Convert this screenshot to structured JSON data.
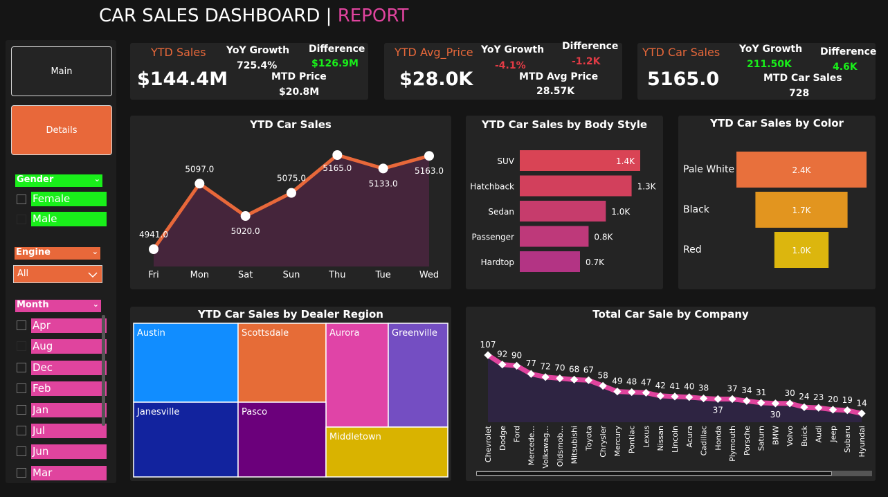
{
  "header": {
    "title": "CAR SALES DASHBOARD |",
    "subtitle": "REPORT"
  },
  "nav": {
    "main_label": "Main",
    "details_label": "Details"
  },
  "kpis": [
    {
      "title": "YTD Sales",
      "value": "$144.4M",
      "yoy_label": "YoY Growth",
      "yoy_value": "725.4%",
      "diff_label": "Difference",
      "diff_value": "$126.9M",
      "mtd_label": "MTD Price",
      "mtd_value": "$20.8M"
    },
    {
      "title": "YTD Avg_Price",
      "value": "$28.0K",
      "yoy_label": "YoY Growth",
      "yoy_value": "-4.1%",
      "diff_label": "Difference",
      "diff_value": "-1.2K",
      "mtd_label": "MTD Avg Price",
      "mtd_value": "28.57K"
    },
    {
      "title": "YTD Car Sales",
      "value": "5165.0",
      "yoy_label": "YoY Growth",
      "yoy_value": "211.50K",
      "diff_label": "Difference",
      "diff_value": "4.6K",
      "mtd_label": "MTD Car Sales",
      "mtd_value": "728"
    }
  ],
  "slicers": {
    "gender": {
      "label": "Gender",
      "options": [
        "Female",
        "Male"
      ]
    },
    "engine": {
      "label": "Engine",
      "selected": "All"
    },
    "month": {
      "label": "Month",
      "options": [
        "Apr",
        "Aug",
        "Dec",
        "Feb",
        "Jan",
        "Jul",
        "Jun",
        "Mar"
      ]
    }
  },
  "colors": {
    "accent": "#e8683a",
    "pink": "#e0449e",
    "green": "#19ef1a",
    "negative": "#e23b45",
    "background": "#151515",
    "panel": "#242424"
  },
  "chart_data": [
    {
      "type": "area",
      "title": "YTD Car Sales",
      "categories": [
        "Fri",
        "Mon",
        "Sat",
        "Sun",
        "Thu",
        "Tue",
        "Wed"
      ],
      "values": [
        4941.0,
        5097.0,
        5020.0,
        5075.0,
        5165.0,
        5133.0,
        5163.0
      ],
      "labels": [
        "4941.0",
        "5097.0",
        "5020.0",
        "5075.0",
        "5165.0",
        "5133.0",
        "5163.0"
      ],
      "ylim": [
        4941,
        5165
      ],
      "color": "#e8683a",
      "fill": "#45253b"
    },
    {
      "type": "bar",
      "title": "YTD Car Sales by Body Style",
      "orientation": "horizontal",
      "categories": [
        "SUV",
        "Hatchback",
        "Sedan",
        "Passenger",
        "Hardtop"
      ],
      "values": [
        1.4,
        1.3,
        1.0,
        0.8,
        0.7
      ],
      "labels": [
        "1.4K",
        "1.3K",
        "1.0K",
        "0.8K",
        "0.7K"
      ],
      "colors": [
        "#d94455",
        "#d2405c",
        "#c63c6c",
        "#be397a",
        "#b33484"
      ]
    },
    {
      "type": "bar",
      "title": "YTD Car Sales by Color",
      "orientation": "funnel",
      "categories": [
        "Pale White",
        "Black",
        "Red"
      ],
      "values": [
        2.4,
        1.7,
        1.0
      ],
      "labels": [
        "2.4K",
        "1.7K",
        "1.0K"
      ],
      "colors": [
        "#e8703c",
        "#e2951f",
        "#dcb60e"
      ]
    },
    {
      "type": "heatmap",
      "title": "YTD Car Sales by Dealer Region",
      "regions": [
        {
          "name": "Austin",
          "color": "#118dff"
        },
        {
          "name": "Scottsdale",
          "color": "#e66c37"
        },
        {
          "name": "Aurora",
          "color": "#e044a7"
        },
        {
          "name": "Greenville",
          "color": "#744ec2"
        },
        {
          "name": "Janesville",
          "color": "#12239e"
        },
        {
          "name": "Pasco",
          "color": "#6b007b"
        },
        {
          "name": "Middletown",
          "color": "#d9b300"
        }
      ]
    },
    {
      "type": "area",
      "title": "Total Car Sale by Company",
      "categories": [
        "Chevrolet",
        "Dodge",
        "Ford",
        "Mercede...",
        "Volkswag...",
        "Oldsmob...",
        "Mitsubishi",
        "Toyota",
        "Chrysler",
        "Mercury",
        "Pontiac",
        "Lexus",
        "Nissan",
        "Lincoln",
        "Acura",
        "Cadillac",
        "Honda",
        "Plymouth",
        "Porsche",
        "Saturn",
        "BMW",
        "Volvo",
        "Buick",
        "Audi",
        "Jeep",
        "Subaru",
        "Hyundai"
      ],
      "values": [
        107,
        92,
        90,
        77,
        72,
        70,
        68,
        67,
        58,
        49,
        48,
        47,
        42,
        41,
        40,
        38,
        37,
        37,
        34,
        31,
        30,
        30,
        24,
        23,
        20,
        19,
        14
      ],
      "ylim": [
        0,
        107
      ],
      "color": "#e0449e",
      "fill": "#2e2442"
    }
  ]
}
